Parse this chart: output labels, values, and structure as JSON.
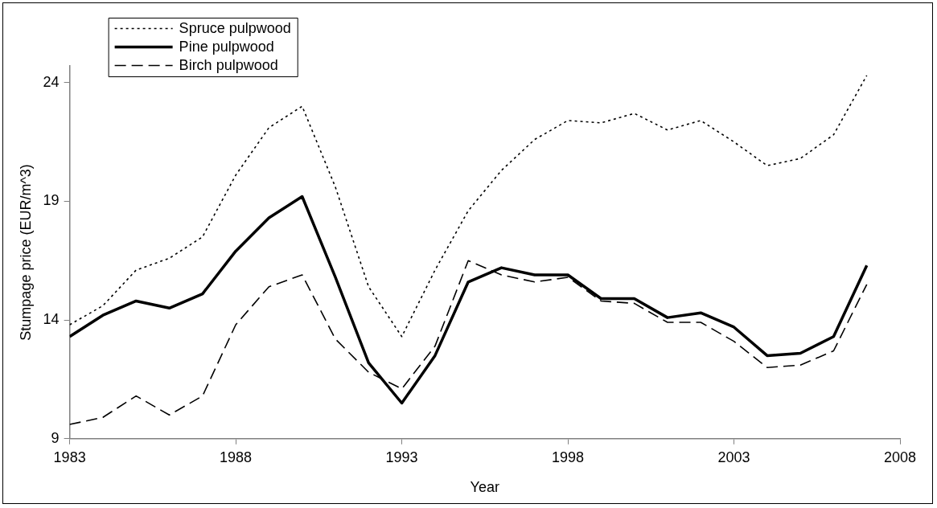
{
  "chart_data": {
    "type": "line",
    "xlabel": "Year",
    "ylabel": "Stumpage price (EUR/m^3)",
    "x": [
      1983,
      1984,
      1985,
      1986,
      1987,
      1988,
      1989,
      1990,
      1991,
      1992,
      1993,
      1994,
      1995,
      1996,
      1997,
      1998,
      1999,
      2000,
      2001,
      2002,
      2003,
      2004,
      2005,
      2006,
      2007
    ],
    "series": [
      {
        "name": "Spruce pulpwood",
        "color": "#000000",
        "line_style": "dotted",
        "values": [
          13.8,
          14.6,
          16.1,
          16.6,
          17.5,
          20.1,
          22.1,
          23.0,
          19.6,
          15.4,
          13.3,
          16.1,
          18.6,
          20.3,
          21.6,
          22.4,
          22.3,
          22.7,
          22.0,
          22.4,
          21.5,
          20.5,
          20.8,
          21.8,
          24.3
        ]
      },
      {
        "name": "Pine pulpwood",
        "color": "#000000",
        "line_style": "solid",
        "values": [
          13.3,
          14.2,
          14.8,
          14.5,
          15.1,
          16.9,
          18.3,
          19.2,
          15.8,
          12.2,
          10.5,
          12.5,
          15.6,
          16.2,
          15.9,
          15.9,
          14.9,
          14.9,
          14.1,
          14.3,
          13.7,
          12.5,
          12.6,
          13.3,
          16.3
        ]
      },
      {
        "name": "Birch pulpwood",
        "color": "#000000",
        "line_style": "dashed",
        "values": [
          9.6,
          9.9,
          10.8,
          10.0,
          10.8,
          13.8,
          15.4,
          15.9,
          13.2,
          11.8,
          11.1,
          12.9,
          16.5,
          15.9,
          15.6,
          15.8,
          14.8,
          14.7,
          13.9,
          13.9,
          13.1,
          12.0,
          12.1,
          12.7,
          15.5
        ]
      }
    ],
    "xlim": [
      1983,
      2008
    ],
    "xticks": [
      1983,
      1988,
      1993,
      1998,
      2003,
      2008
    ],
    "ylim": [
      9,
      24.7
    ],
    "yticks": [
      9,
      14,
      19,
      24
    ],
    "grid": false,
    "legend": "top left",
    "marker": "none"
  }
}
